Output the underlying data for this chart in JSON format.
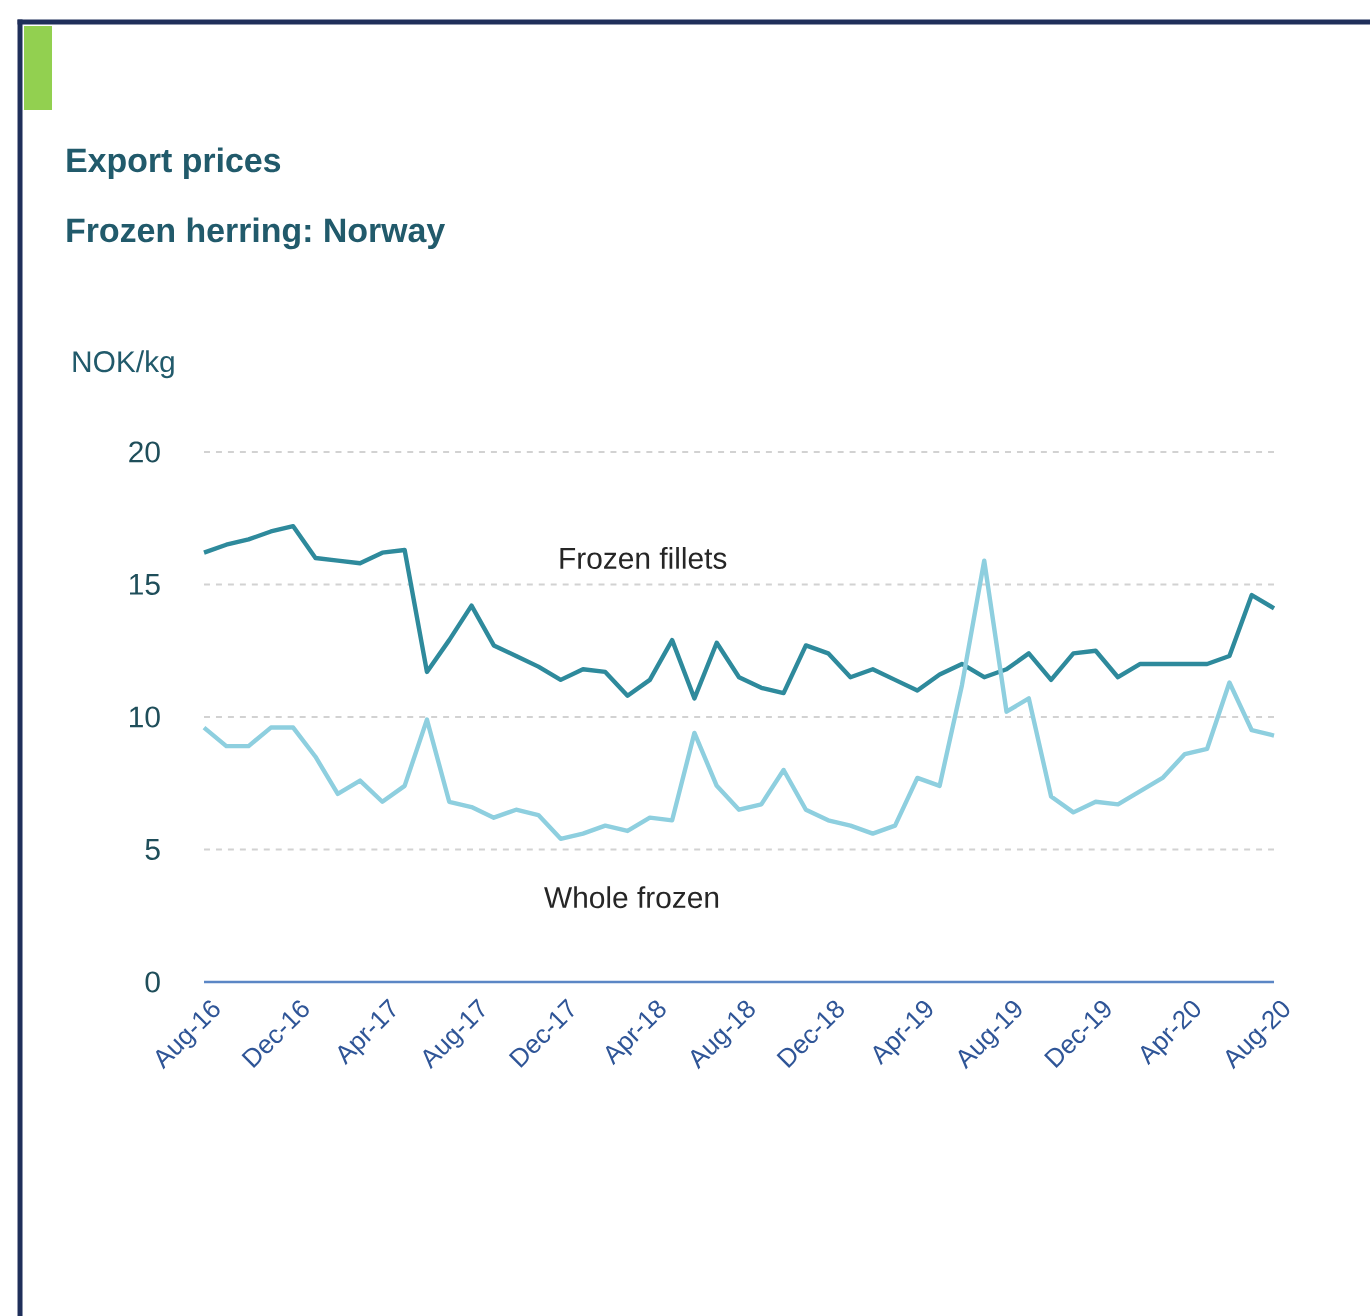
{
  "chart_data": {
    "type": "line",
    "title": "Export prices",
    "subtitle": "Frozen herring: Norway",
    "ylabel": "NOK/kg",
    "categories": [
      "Aug-16",
      null,
      null,
      null,
      "Dec-16",
      null,
      null,
      null,
      "Apr-17",
      null,
      null,
      null,
      "Aug-17",
      null,
      null,
      null,
      "Dec-17",
      null,
      null,
      null,
      "Apr-18",
      null,
      null,
      null,
      "Aug-18",
      null,
      null,
      null,
      "Dec-18",
      null,
      null,
      null,
      "Apr-19",
      null,
      null,
      null,
      "Aug-19",
      null,
      null,
      null,
      "Dec-19",
      null,
      null,
      null,
      "Apr-20",
      null,
      null,
      null,
      "Aug-20"
    ],
    "series": [
      {
        "name": "Frozen fillets",
        "color": "#2e8a9c",
        "values": [
          16.2,
          16.5,
          16.7,
          17.0,
          17.2,
          16.0,
          15.9,
          15.8,
          16.2,
          16.3,
          11.7,
          12.9,
          14.2,
          12.7,
          12.3,
          11.9,
          11.4,
          11.8,
          11.7,
          10.8,
          11.4,
          12.9,
          10.7,
          12.8,
          11.5,
          11.1,
          10.9,
          12.7,
          12.4,
          11.5,
          11.8,
          11.4,
          11.0,
          11.6,
          12.0,
          11.5,
          11.8,
          12.4,
          11.4,
          12.4,
          12.5,
          11.5,
          12.0,
          12.0,
          12.0,
          12.0,
          12.3,
          14.6,
          14.1
        ]
      },
      {
        "name": "Whole frozen",
        "color": "#8ecfdf",
        "values": [
          9.6,
          8.9,
          8.9,
          9.6,
          9.6,
          8.5,
          7.1,
          7.6,
          6.8,
          7.4,
          9.9,
          6.8,
          6.6,
          6.2,
          6.5,
          6.3,
          5.4,
          5.6,
          5.9,
          5.7,
          6.2,
          6.1,
          9.4,
          7.4,
          6.5,
          6.7,
          8.0,
          6.5,
          6.1,
          5.9,
          5.6,
          5.9,
          7.7,
          7.4,
          11.2,
          15.9,
          10.2,
          10.7,
          7.0,
          6.4,
          6.8,
          6.7,
          7.2,
          7.7,
          8.6,
          8.8,
          11.3,
          9.5,
          9.3
        ]
      }
    ],
    "ylim": [
      0,
      20
    ],
    "yticks": [
      0,
      5,
      10,
      15,
      20
    ],
    "grid": "y",
    "marker": "none",
    "line_style": "solid"
  }
}
